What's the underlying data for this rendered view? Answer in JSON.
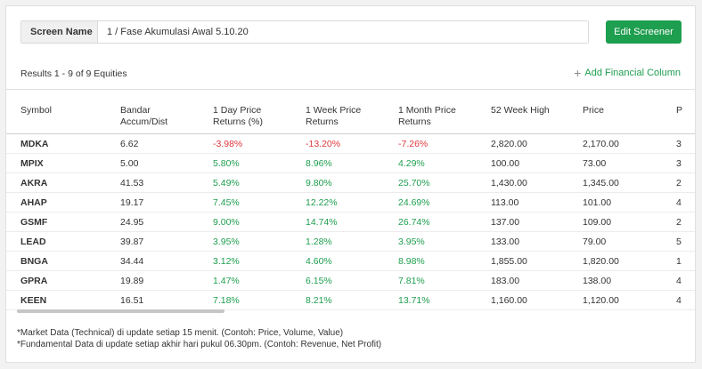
{
  "screen": {
    "label": "Screen Name",
    "value": "1 / Fase Akumulasi Awal 5.10.20",
    "edit_button": "Edit Screener"
  },
  "results_text": "Results 1 - 9 of 9 Equities",
  "add_column_label": "Add Financial Column",
  "columns": [
    "Symbol",
    "Bandar Accum/Dist",
    "1 Day Price Returns (%)",
    "1 Week Price Returns",
    "1 Month Price Returns",
    "52 Week High",
    "Price",
    "P"
  ],
  "rows": [
    {
      "symbol": "MDKA",
      "bandar": "6.62",
      "d1": "-3.98%",
      "w1": "-13.20%",
      "m1": "-7.26%",
      "high52": "2,820.00",
      "price": "2,170.00",
      "p": "3"
    },
    {
      "symbol": "MPIX",
      "bandar": "5.00",
      "d1": "5.80%",
      "w1": "8.96%",
      "m1": "4.29%",
      "high52": "100.00",
      "price": "73.00",
      "p": "3"
    },
    {
      "symbol": "AKRA",
      "bandar": "41.53",
      "d1": "5.49%",
      "w1": "9.80%",
      "m1": "25.70%",
      "high52": "1,430.00",
      "price": "1,345.00",
      "p": "2"
    },
    {
      "symbol": "AHAP",
      "bandar": "19.17",
      "d1": "7.45%",
      "w1": "12.22%",
      "m1": "24.69%",
      "high52": "113.00",
      "price": "101.00",
      "p": "4"
    },
    {
      "symbol": "GSMF",
      "bandar": "24.95",
      "d1": "9.00%",
      "w1": "14.74%",
      "m1": "26.74%",
      "high52": "137.00",
      "price": "109.00",
      "p": "2"
    },
    {
      "symbol": "LEAD",
      "bandar": "39.87",
      "d1": "3.95%",
      "w1": "1.28%",
      "m1": "3.95%",
      "high52": "133.00",
      "price": "79.00",
      "p": "5"
    },
    {
      "symbol": "BNGA",
      "bandar": "34.44",
      "d1": "3.12%",
      "w1": "4.60%",
      "m1": "8.98%",
      "high52": "1,855.00",
      "price": "1,820.00",
      "p": "1"
    },
    {
      "symbol": "GPRA",
      "bandar": "19.89",
      "d1": "1.47%",
      "w1": "6.15%",
      "m1": "7.81%",
      "high52": "183.00",
      "price": "138.00",
      "p": "4"
    },
    {
      "symbol": "KEEN",
      "bandar": "16.51",
      "d1": "7.18%",
      "w1": "8.21%",
      "m1": "13.71%",
      "high52": "1,160.00",
      "price": "1,120.00",
      "p": "4"
    }
  ],
  "footnotes": [
    "*Market Data (Technical) di update setiap 15 menit. (Contoh: Price, Volume, Value)",
    "*Fundamental Data di update setiap akhir hari pukul 06.30pm. (Contoh: Revenue, Net Profit)"
  ],
  "colors": {
    "positive": "#1e9e4f",
    "negative": "#e0393e",
    "button": "#1e9e4f"
  }
}
